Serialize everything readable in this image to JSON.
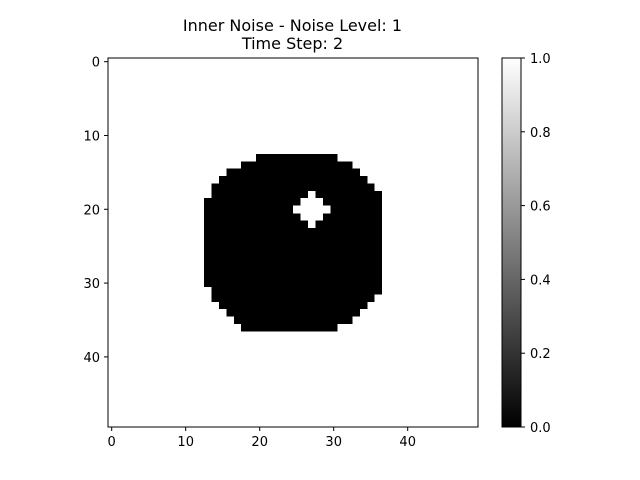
{
  "chart_data": {
    "type": "heatmap",
    "title_line1": "Inner Noise - Noise Level: 1",
    "title_line2": "Time Step: 2",
    "grid_size": [
      50,
      50
    ],
    "colormap": "gray",
    "value_range": [
      0.0,
      1.0
    ],
    "background_value": 1.0,
    "disc": {
      "value": 0.0,
      "row_spans": [
        {
          "row": 13,
          "cols": [
            20,
            30
          ]
        },
        {
          "row": 14,
          "cols": [
            18,
            32
          ]
        },
        {
          "row": 15,
          "cols": [
            16,
            33
          ]
        },
        {
          "row": 16,
          "cols": [
            15,
            34
          ]
        },
        {
          "row": 17,
          "cols": [
            14,
            35
          ]
        },
        {
          "row": 18,
          "cols": [
            14,
            36
          ]
        },
        {
          "row": 19,
          "cols": [
            13,
            36
          ]
        },
        {
          "row": 20,
          "cols": [
            13,
            36
          ]
        },
        {
          "row": 21,
          "cols": [
            13,
            36
          ]
        },
        {
          "row": 22,
          "cols": [
            13,
            36
          ]
        },
        {
          "row": 23,
          "cols": [
            13,
            36
          ]
        },
        {
          "row": 24,
          "cols": [
            13,
            36
          ]
        },
        {
          "row": 25,
          "cols": [
            13,
            36
          ]
        },
        {
          "row": 26,
          "cols": [
            13,
            36
          ]
        },
        {
          "row": 27,
          "cols": [
            13,
            36
          ]
        },
        {
          "row": 28,
          "cols": [
            13,
            36
          ]
        },
        {
          "row": 29,
          "cols": [
            13,
            36
          ]
        },
        {
          "row": 30,
          "cols": [
            13,
            36
          ]
        },
        {
          "row": 31,
          "cols": [
            14,
            36
          ]
        },
        {
          "row": 32,
          "cols": [
            14,
            35
          ]
        },
        {
          "row": 33,
          "cols": [
            15,
            34
          ]
        },
        {
          "row": 34,
          "cols": [
            16,
            33
          ]
        },
        {
          "row": 35,
          "cols": [
            17,
            32
          ]
        },
        {
          "row": 36,
          "cols": [
            18,
            30
          ]
        }
      ]
    },
    "hole": {
      "value": 1.0,
      "row_spans": [
        {
          "row": 18,
          "cols": [
            27,
            27
          ]
        },
        {
          "row": 19,
          "cols": [
            26,
            28
          ]
        },
        {
          "row": 20,
          "cols": [
            25,
            29
          ]
        },
        {
          "row": 21,
          "cols": [
            26,
            28
          ]
        },
        {
          "row": 22,
          "cols": [
            27,
            27
          ]
        }
      ]
    },
    "x_ticks": [
      0,
      10,
      20,
      30,
      40
    ],
    "y_ticks": [
      0,
      10,
      20,
      30,
      40
    ],
    "colorbar_ticks": [
      "0.0",
      "0.2",
      "0.4",
      "0.6",
      "0.8",
      "1.0"
    ]
  }
}
